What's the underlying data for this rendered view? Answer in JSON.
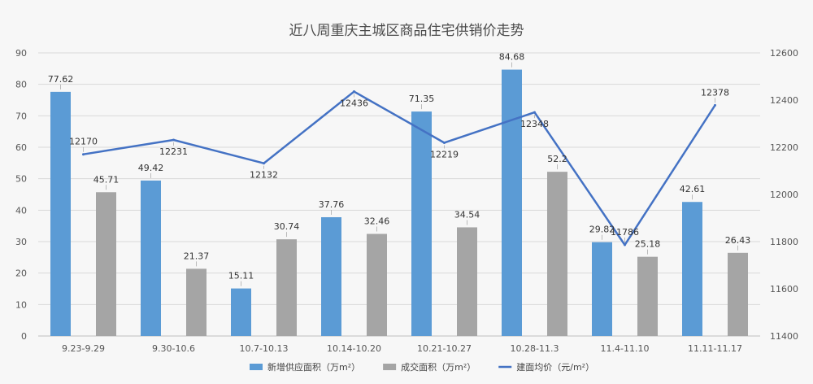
{
  "chart_data": {
    "type": "bar",
    "title": "近八周重庆主城区商品住宅供销价走势",
    "categories": [
      "9.23-9.29",
      "9.30-10.6",
      "10.7-10.13",
      "10.14-10.20",
      "10.21-10.27",
      "10.28-11.3",
      "11.4-11.10",
      "11.11-11.17"
    ],
    "series": [
      {
        "name": "新增供应面积（万m²）",
        "type": "bar",
        "axis": "left",
        "color": "#5b9bd5",
        "values": [
          77.62,
          49.42,
          15.11,
          37.76,
          71.35,
          84.68,
          29.82,
          42.61
        ]
      },
      {
        "name": "成交面积（万m²）",
        "type": "bar",
        "axis": "left",
        "color": "#a5a5a5",
        "values": [
          45.71,
          21.37,
          30.74,
          32.46,
          34.54,
          52.2,
          25.18,
          26.43
        ]
      },
      {
        "name": "建面均价（元/m²）",
        "type": "line",
        "axis": "right",
        "color": "#4472c4",
        "values": [
          12170,
          12231,
          12132,
          12436,
          12219,
          12348,
          11786,
          12378
        ]
      }
    ],
    "y_left": {
      "min": 0,
      "max": 90,
      "step": 10
    },
    "y_right": {
      "min": 11400,
      "max": 12600,
      "step": 200
    },
    "grid": true,
    "legend_position": "bottom"
  }
}
